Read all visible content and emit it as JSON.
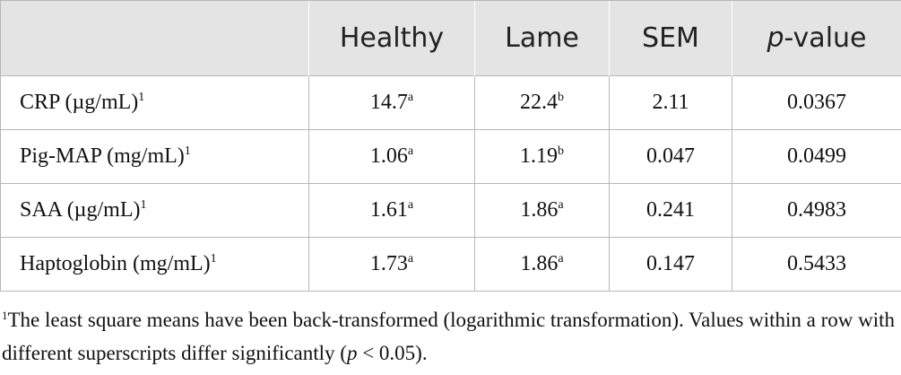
{
  "table": {
    "headers": [
      {
        "text": "",
        "italic": false
      },
      {
        "text": "Healthy",
        "italic": false
      },
      {
        "text": "Lame",
        "italic": false
      },
      {
        "text": "SEM",
        "italic": false
      },
      {
        "text": "p",
        "suffix": "-value",
        "italic": true
      }
    ],
    "rows": [
      {
        "label": "CRP (µg/mL)",
        "label_sup": "1",
        "healthy": "14.7",
        "healthy_sup": "a",
        "lame": "22.4",
        "lame_sup": "b",
        "sem": "2.11",
        "p_value": "0.0367"
      },
      {
        "label": "Pig-MAP (mg/mL)",
        "label_sup": "1",
        "healthy": "1.06",
        "healthy_sup": "a",
        "lame": "1.19",
        "lame_sup": "b",
        "sem": "0.047",
        "p_value": "0.0499"
      },
      {
        "label": "SAA (µg/mL)",
        "label_sup": "1",
        "healthy": "1.61",
        "healthy_sup": "a",
        "lame": "1.86",
        "lame_sup": "a",
        "sem": "0.241",
        "p_value": "0.4983"
      },
      {
        "label": "Haptoglobin (mg/mL)",
        "label_sup": "1",
        "healthy": "1.73",
        "healthy_sup": "a",
        "lame": "1.86",
        "lame_sup": "a",
        "sem": "0.147",
        "p_value": "0.5433"
      }
    ]
  },
  "footnote": {
    "marker": "1",
    "text_1": "The least square means have been back-transformed (logarithmic transformation). Values within a row with different superscripts differ significantly (",
    "p": "p",
    "text_2": " < 0.05)."
  },
  "colors": {
    "header_bg": "#e4e4e4",
    "border": "#b8b8b8",
    "text": "#111111"
  }
}
